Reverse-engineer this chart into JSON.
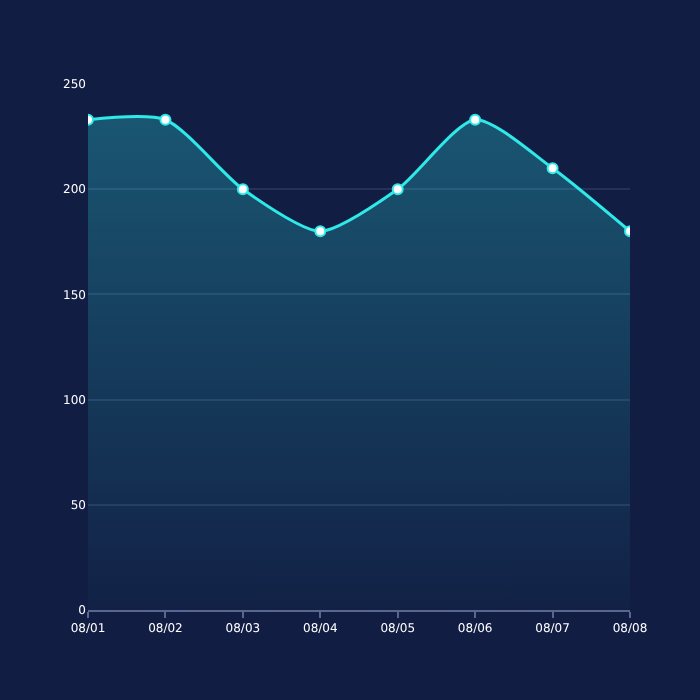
{
  "chart_data": {
    "type": "area",
    "categories": [
      "08/01",
      "08/02",
      "08/03",
      "08/04",
      "08/05",
      "08/06",
      "08/07",
      "08/08"
    ],
    "series": [
      {
        "color": "#2fe8e8",
        "values": [
          233,
          233,
          200,
          180,
          200,
          233,
          210,
          180
        ]
      }
    ],
    "ylim": [
      0,
      250
    ],
    "yticks": [
      0,
      50,
      100,
      150,
      200,
      250
    ],
    "grid": "y",
    "marker": "circle",
    "line_style": "solid"
  }
}
